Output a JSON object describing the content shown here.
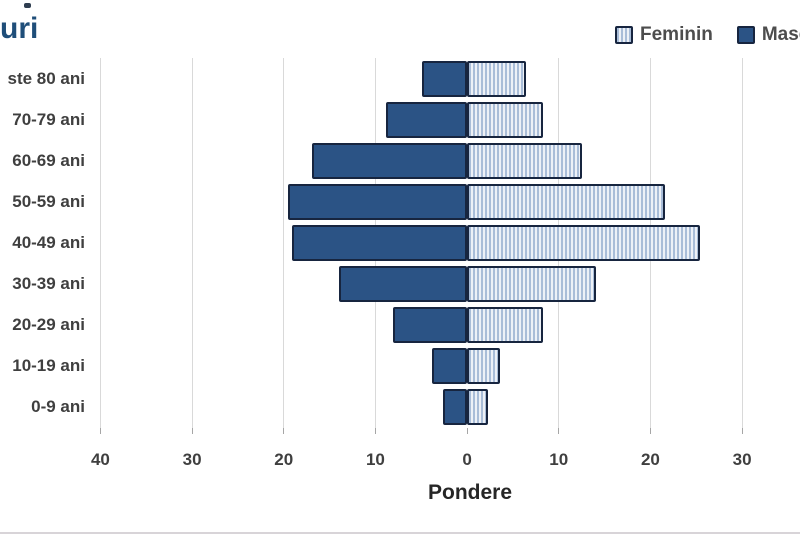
{
  "title": "uri",
  "legend": {
    "items": [
      {
        "label": "Feminin",
        "swatch": "striped"
      },
      {
        "label": "Masculin",
        "swatch": "solid"
      }
    ]
  },
  "colors": {
    "male_fill": "#2B5385",
    "female_stripe_dark": "#A9BDD8",
    "female_stripe_light": "#EDF1F7",
    "bar_border": "#17253F",
    "title_text": "#1F4E79",
    "gridline": "#D9D9D9",
    "axis_text": "#3F3F3F"
  },
  "chart_data": {
    "type": "bar",
    "subtype": "population-pyramid",
    "title_visible_fragment": "uri",
    "xlabel": "Pondere",
    "categories": [
      "ste 80 ani",
      "70-79 ani",
      "60-69 ani",
      "50-59 ani",
      "40-49 ani",
      "30-39 ani",
      "20-29 ani",
      "10-19 ani",
      "0-9 ani"
    ],
    "series": [
      {
        "name": "Masculin",
        "side": "left",
        "style": "solid",
        "values": [
          4.9,
          8.8,
          16.9,
          19.5,
          19.1,
          14.0,
          8.1,
          3.8,
          2.6
        ]
      },
      {
        "name": "Feminin",
        "side": "right",
        "style": "striped",
        "values": [
          6.4,
          8.3,
          12.5,
          21.6,
          25.4,
          14.1,
          8.3,
          3.6,
          2.3
        ]
      }
    ],
    "x_ticks": [
      {
        "label": "40",
        "units": -40
      },
      {
        "label": "30",
        "units": -30
      },
      {
        "label": "20",
        "units": -20
      },
      {
        "label": "10",
        "units": -10
      },
      {
        "label": "0",
        "units": 0
      },
      {
        "label": "10",
        "units": 10
      },
      {
        "label": "20",
        "units": 20
      },
      {
        "label": "30",
        "units": 30
      }
    ],
    "x_range_units": [
      -44,
      36
    ],
    "grid": true,
    "legend_position": "top-right"
  }
}
